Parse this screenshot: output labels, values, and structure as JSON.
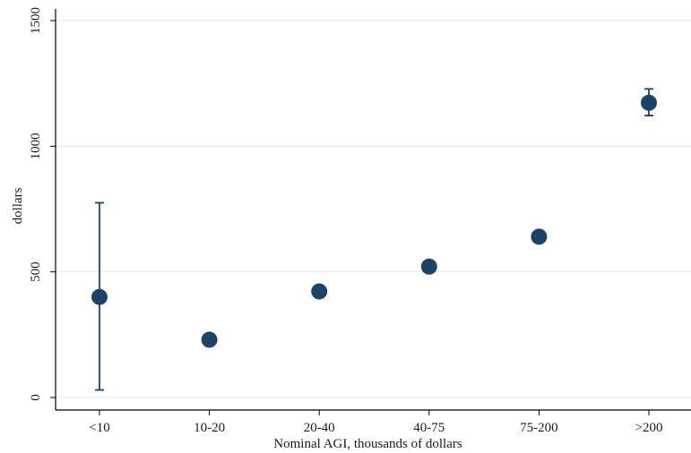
{
  "chart_data": {
    "type": "scatter",
    "title": "",
    "xlabel": "Nominal AGI, thousands of dollars",
    "ylabel": "dollars",
    "categories": [
      "<10",
      "10-20",
      "20-40",
      "40-75",
      "75-200",
      ">200"
    ],
    "series": [
      {
        "values": [
          400,
          230,
          422,
          521,
          640,
          1173
        ],
        "ci_low": [
          30,
          205,
          410,
          512,
          632,
          1122
        ],
        "ci_high": [
          775,
          252,
          434,
          531,
          648,
          1228
        ]
      }
    ],
    "ylim": [
      0,
      1500
    ],
    "yticks": [
      0,
      500,
      1000,
      1500
    ],
    "grid": true,
    "legend": "none",
    "colors": {
      "marker": "#1c4266",
      "errorbar": "#1c4266",
      "grid": "#e6e6e6",
      "axis": "#000000"
    }
  }
}
